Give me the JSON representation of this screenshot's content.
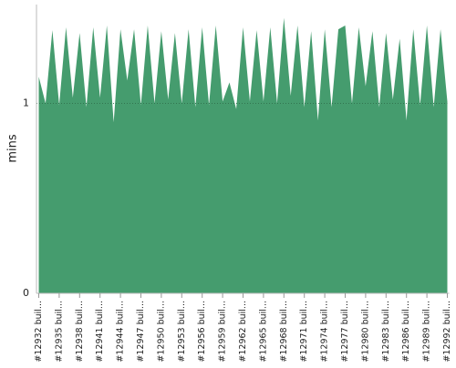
{
  "chart_data": {
    "type": "area",
    "y_label": "mins",
    "color": "#459c6e",
    "grid": true,
    "ylim": [
      0,
      1.52
    ],
    "yticks": [
      0,
      1
    ],
    "categories": [
      "#12932 buil...",
      null,
      null,
      "#12935 buil...",
      null,
      null,
      "#12938 buil...",
      null,
      null,
      "#12941 buil...",
      null,
      null,
      "#12944 buil...",
      null,
      null,
      "#12947 buil...",
      null,
      null,
      "#12950 buil...",
      null,
      null,
      "#12953 buil...",
      null,
      null,
      "#12956 buil...",
      null,
      null,
      "#12959 buil...",
      null,
      null,
      "#12962 buil...",
      null,
      null,
      "#12965 buil...",
      null,
      null,
      "#12968 buil...",
      null,
      null,
      "#12971 buil...",
      null,
      null,
      "#12974 buil...",
      null,
      null,
      "#12977 buil...",
      null,
      null,
      "#12980 buil...",
      null,
      null,
      "#12983 buil...",
      null,
      null,
      "#12986 buil...",
      null,
      null,
      "#12989 buil...",
      null,
      null,
      "#12992 buil..."
    ],
    "values": [
      1.14,
      1.0,
      1.385,
      0.99,
      1.4,
      1.03,
      1.37,
      0.98,
      1.4,
      1.03,
      1.41,
      0.9,
      1.39,
      1.12,
      1.39,
      0.99,
      1.41,
      1.0,
      1.38,
      1.02,
      1.37,
      1.0,
      1.39,
      0.98,
      1.4,
      0.99,
      1.41,
      1.01,
      1.11,
      0.97,
      1.4,
      1.01,
      1.385,
      1.01,
      1.4,
      1.0,
      1.45,
      1.04,
      1.41,
      0.98,
      1.38,
      0.91,
      1.39,
      0.98,
      1.39,
      1.41,
      1.0,
      1.4,
      1.09,
      1.38,
      0.98,
      1.37,
      1.02,
      1.34,
      0.91,
      1.39,
      0.99,
      1.41,
      0.98,
      1.39,
      1.01
    ]
  }
}
